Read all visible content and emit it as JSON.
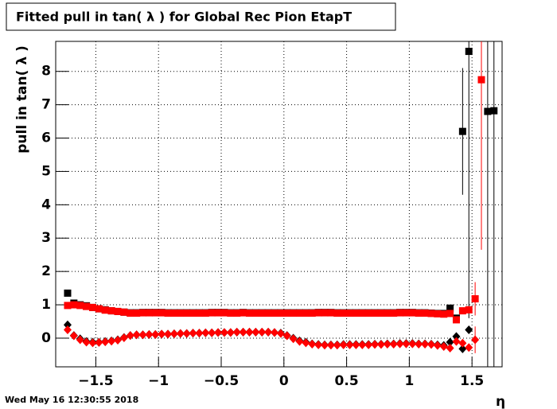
{
  "chart_data": {
    "type": "scatter",
    "title": "Fitted pull in tan( λ ) for Global Rec Pion EtapT",
    "y_label": "pull in tan( λ )",
    "x_label": "η",
    "footer": "Wed May 16 12:30:55 2018",
    "xlim": [
      -1.82,
      1.74
    ],
    "ylim": [
      -0.86,
      8.9
    ],
    "xticks": [
      {
        "value": -1.5,
        "label": "−1.5"
      },
      {
        "value": -1,
        "label": "−1"
      },
      {
        "value": -0.5,
        "label": "−0.5"
      },
      0,
      0.5,
      1,
      1.5
    ],
    "yticks": [
      0,
      1,
      2,
      3,
      4,
      5,
      6,
      7,
      8
    ],
    "grid": true,
    "x": [
      -1.725,
      -1.675,
      -1.625,
      -1.575,
      -1.525,
      -1.475,
      -1.425,
      -1.375,
      -1.325,
      -1.275,
      -1.225,
      -1.175,
      -1.125,
      -1.075,
      -1.025,
      -0.975,
      -0.925,
      -0.875,
      -0.825,
      -0.775,
      -0.725,
      -0.675,
      -0.625,
      -0.575,
      -0.525,
      -0.475,
      -0.425,
      -0.375,
      -0.325,
      -0.275,
      -0.225,
      -0.175,
      -0.125,
      -0.075,
      -0.025,
      0.025,
      0.075,
      0.125,
      0.175,
      0.225,
      0.275,
      0.325,
      0.375,
      0.425,
      0.475,
      0.525,
      0.575,
      0.625,
      0.675,
      0.725,
      0.775,
      0.825,
      0.875,
      0.925,
      0.975,
      1.025,
      1.075,
      1.125,
      1.175,
      1.225,
      1.275,
      1.325,
      1.375,
      1.425,
      1.475,
      1.525,
      1.575,
      1.625,
      1.675
    ],
    "series": [
      {
        "marker": "square",
        "color": "#000000",
        "values": [
          1.35,
          1.05,
          1.0,
          0.97,
          0.92,
          0.88,
          0.85,
          0.82,
          0.8,
          0.78,
          0.76,
          0.76,
          0.77,
          0.77,
          0.77,
          0.77,
          0.76,
          0.76,
          0.76,
          0.76,
          0.76,
          0.76,
          0.76,
          0.77,
          0.77,
          0.77,
          0.76,
          0.76,
          0.77,
          0.76,
          0.76,
          0.76,
          0.76,
          0.76,
          0.76,
          0.76,
          0.76,
          0.76,
          0.76,
          0.76,
          0.77,
          0.77,
          0.77,
          0.76,
          0.76,
          0.76,
          0.76,
          0.76,
          0.76,
          0.76,
          0.76,
          0.76,
          0.76,
          0.77,
          0.77,
          0.77,
          0.76,
          0.76,
          0.75,
          0.74,
          0.74,
          0.9,
          0.6,
          6.2,
          8.6,
          null,
          null,
          6.8,
          6.82
        ],
        "errors": [
          null,
          null,
          null,
          null,
          null,
          null,
          null,
          null,
          null,
          null,
          null,
          null,
          null,
          null,
          null,
          null,
          null,
          null,
          null,
          null,
          null,
          null,
          null,
          null,
          null,
          null,
          null,
          null,
          null,
          null,
          null,
          null,
          null,
          null,
          null,
          null,
          null,
          null,
          null,
          null,
          null,
          null,
          null,
          null,
          null,
          null,
          null,
          null,
          null,
          null,
          null,
          null,
          null,
          null,
          null,
          null,
          null,
          null,
          null,
          null,
          null,
          null,
          null,
          1.9,
          8,
          null,
          null,
          8,
          8
        ]
      },
      {
        "marker": "square",
        "color": "#ff0000",
        "values": [
          0.98,
          1.0,
          0.98,
          0.95,
          0.92,
          0.88,
          0.84,
          0.82,
          0.8,
          0.78,
          0.75,
          0.75,
          0.76,
          0.76,
          0.76,
          0.76,
          0.75,
          0.75,
          0.75,
          0.75,
          0.75,
          0.75,
          0.75,
          0.76,
          0.76,
          0.76,
          0.75,
          0.75,
          0.76,
          0.75,
          0.75,
          0.75,
          0.75,
          0.75,
          0.75,
          0.75,
          0.75,
          0.75,
          0.75,
          0.75,
          0.76,
          0.76,
          0.76,
          0.75,
          0.75,
          0.75,
          0.75,
          0.75,
          0.75,
          0.75,
          0.75,
          0.75,
          0.75,
          0.76,
          0.76,
          0.76,
          0.75,
          0.75,
          0.74,
          0.73,
          0.72,
          0.74,
          0.55,
          0.82,
          0.85,
          1.18,
          7.75,
          null,
          null
        ],
        "errors": [
          null,
          null,
          null,
          null,
          null,
          null,
          null,
          null,
          null,
          null,
          null,
          null,
          null,
          null,
          null,
          null,
          null,
          null,
          null,
          null,
          null,
          null,
          null,
          null,
          null,
          null,
          null,
          null,
          null,
          null,
          null,
          null,
          null,
          null,
          null,
          null,
          null,
          null,
          null,
          null,
          null,
          null,
          null,
          null,
          null,
          null,
          null,
          null,
          null,
          null,
          null,
          null,
          null,
          null,
          null,
          null,
          null,
          null,
          null,
          null,
          null,
          null,
          null,
          null,
          null,
          0.5,
          5.1,
          null,
          null
        ]
      },
      {
        "marker": "diamond",
        "color": "#000000",
        "values": [
          0.4,
          0.08,
          -0.02,
          -0.1,
          -0.12,
          -0.12,
          -0.1,
          -0.08,
          -0.05,
          0.02,
          0.08,
          0.1,
          0.1,
          0.11,
          0.11,
          0.12,
          0.12,
          0.13,
          0.14,
          0.14,
          0.15,
          0.15,
          0.16,
          0.16,
          0.17,
          0.17,
          0.17,
          0.18,
          0.18,
          0.18,
          0.18,
          0.18,
          0.18,
          0.17,
          0.15,
          0.08,
          0.0,
          -0.08,
          -0.12,
          -0.17,
          -0.19,
          -0.2,
          -0.2,
          -0.2,
          -0.19,
          -0.19,
          -0.19,
          -0.19,
          -0.19,
          -0.18,
          -0.18,
          -0.17,
          -0.17,
          -0.16,
          -0.16,
          -0.16,
          -0.17,
          -0.17,
          -0.18,
          -0.2,
          -0.22,
          -0.12,
          0.05,
          -0.32,
          0.25,
          null,
          null,
          null,
          null
        ],
        "errors": [
          null,
          null,
          null,
          null,
          null,
          null,
          null,
          null,
          null,
          null,
          null,
          null,
          null,
          null,
          null,
          null,
          null,
          null,
          null,
          null,
          null,
          null,
          null,
          null,
          null,
          null,
          null,
          null,
          null,
          null,
          null,
          null,
          null,
          null,
          null,
          null,
          null,
          null,
          null,
          null,
          null,
          null,
          null,
          null,
          null,
          null,
          null,
          null,
          null,
          null,
          null,
          null,
          null,
          null,
          null,
          null,
          null,
          null,
          null,
          null,
          null,
          null,
          null,
          null,
          null,
          null,
          null,
          null,
          null
        ]
      },
      {
        "marker": "diamond",
        "color": "#ff0000",
        "values": [
          0.25,
          0.07,
          -0.05,
          -0.12,
          -0.14,
          -0.13,
          -0.11,
          -0.09,
          -0.06,
          0.01,
          0.08,
          0.1,
          0.1,
          0.11,
          0.11,
          0.12,
          0.12,
          0.13,
          0.14,
          0.14,
          0.15,
          0.15,
          0.16,
          0.16,
          0.17,
          0.17,
          0.17,
          0.18,
          0.18,
          0.18,
          0.18,
          0.18,
          0.18,
          0.17,
          0.14,
          0.07,
          -0.02,
          -0.1,
          -0.14,
          -0.18,
          -0.2,
          -0.21,
          -0.21,
          -0.21,
          -0.2,
          -0.2,
          -0.2,
          -0.2,
          -0.2,
          -0.19,
          -0.19,
          -0.18,
          -0.18,
          -0.17,
          -0.17,
          -0.17,
          -0.18,
          -0.18,
          -0.19,
          -0.22,
          -0.25,
          -0.3,
          -0.1,
          -0.15,
          -0.28,
          -0.05,
          null,
          null,
          null
        ],
        "errors": [
          null,
          null,
          null,
          null,
          null,
          null,
          null,
          null,
          null,
          null,
          null,
          null,
          null,
          null,
          null,
          null,
          null,
          null,
          null,
          null,
          null,
          null,
          null,
          null,
          null,
          null,
          null,
          null,
          null,
          null,
          null,
          null,
          null,
          null,
          null,
          null,
          null,
          null,
          null,
          null,
          null,
          null,
          null,
          null,
          null,
          null,
          null,
          null,
          null,
          null,
          null,
          null,
          null,
          null,
          null,
          null,
          null,
          null,
          null,
          null,
          null,
          null,
          null,
          null,
          null,
          0.4,
          null,
          null,
          null
        ]
      }
    ]
  }
}
